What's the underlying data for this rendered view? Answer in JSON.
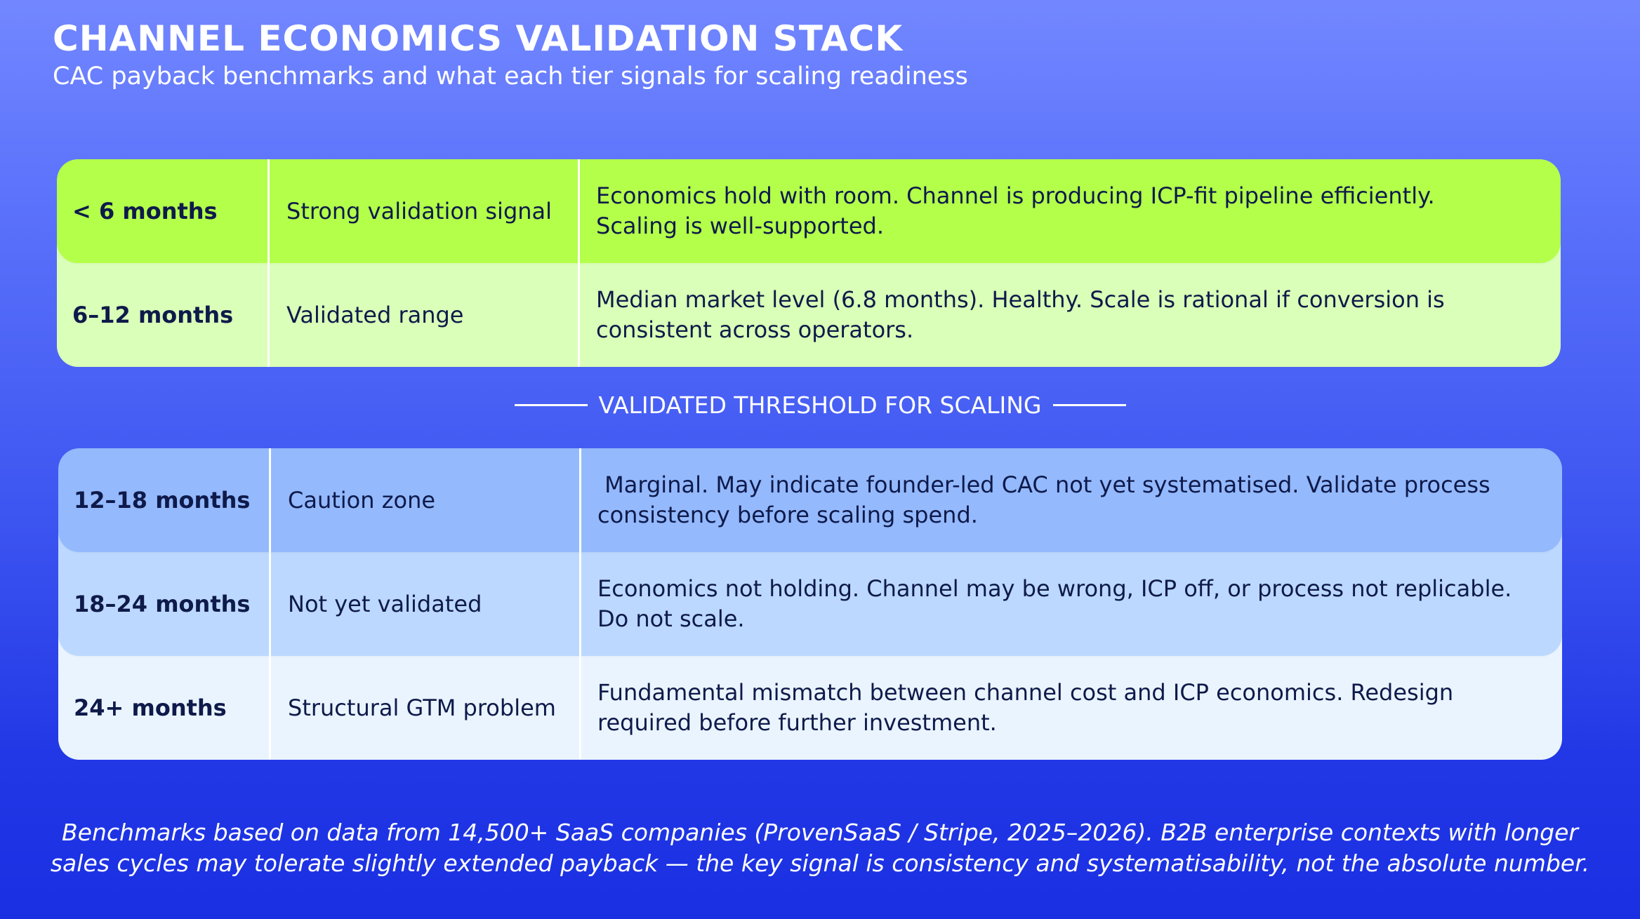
{
  "header": {
    "title": "CHANNEL ECONOMICS VALIDATION STACK",
    "subtitle": "CAC payback benchmarks and what each tier signals for scaling readiness"
  },
  "top_table": {
    "rows": [
      {
        "range": "< 6 months",
        "label": "Strong validation signal",
        "line1": "Economics hold with room. Channel is producing ICP-fit pipeline efficiently.",
        "line2": "Scaling is well-supported.",
        "color": "#b3ff4a"
      },
      {
        "range": "6–12 months",
        "label": "Validated range",
        "line1": "Median market level (6.8 months). Healthy. Scale is rational if conversion is",
        "line2": "consistent across operators.",
        "color": "#daffb8"
      }
    ]
  },
  "divider": {
    "label": "VALIDATED THRESHOLD FOR SCALING"
  },
  "bottom_table": {
    "rows": [
      {
        "range": "12–18 months",
        "label": "Caution zone",
        "line1": " Marginal. May indicate founder-led CAC not yet systematised. Validate process",
        "line2": "consistency before scaling spend.",
        "color": "#94b9fd"
      },
      {
        "range": "18–24 months",
        "label": "Not yet validated",
        "line1": "Economics not holding. Channel may be wrong, ICP off, or process not replicable.",
        "line2": "Do not scale.",
        "color": "#bcd8fe"
      },
      {
        "range": "24+ months",
        "label": "Structural GTM problem",
        "line1": "Fundamental mismatch between channel cost and ICP economics. Redesign",
        "line2": "required before further investment.",
        "color": "#eaf4fe"
      }
    ]
  },
  "footnote": {
    "line1": "Benchmarks based on data from 14,500+ SaaS companies (ProvenSaaS / Stripe, 2025–2026). B2B enterprise contexts with longer",
    "line2": "sales cycles may tolerate slightly extended payback — the key signal is consistency and systematisability, not the absolute number."
  }
}
